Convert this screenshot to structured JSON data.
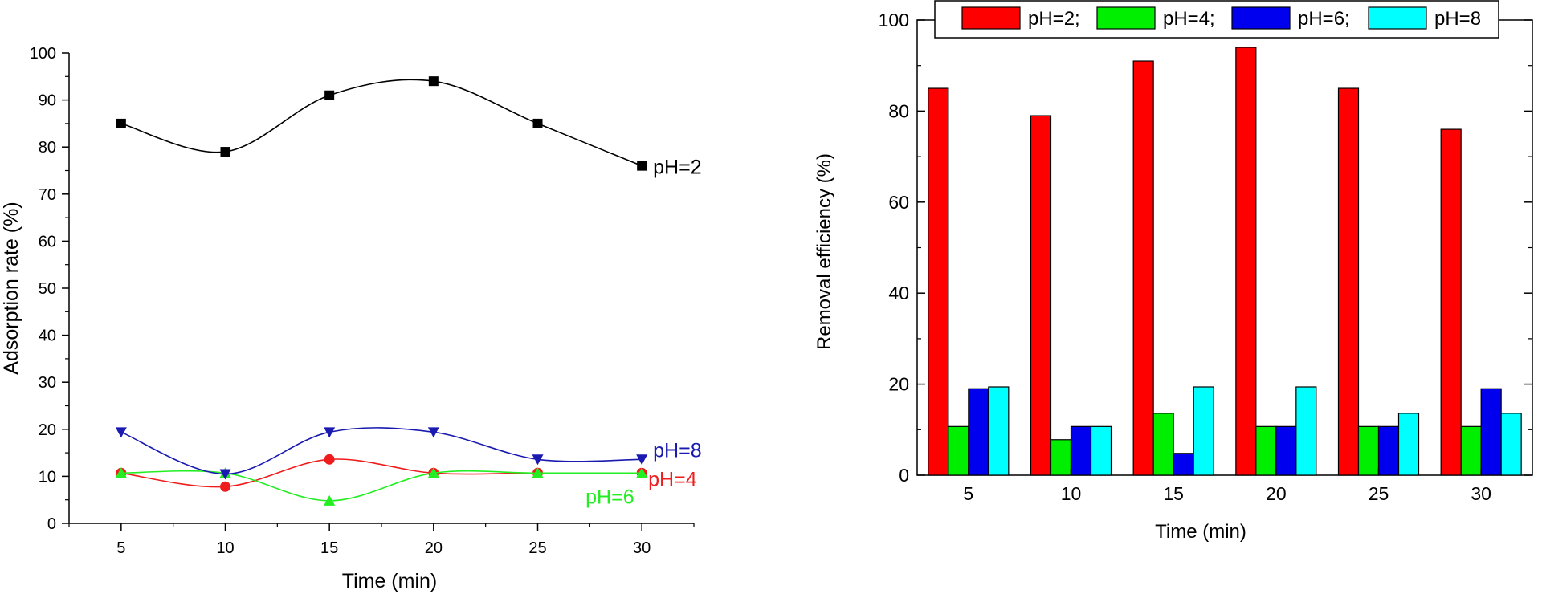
{
  "chart_data": [
    {
      "type": "line",
      "smooth": true,
      "xlabel": "Time (min)",
      "ylabel": "Adsorption rate (%)",
      "x": [
        5,
        10,
        15,
        20,
        25,
        30
      ],
      "xlim": [
        2.5,
        32.5
      ],
      "ylim": [
        0,
        100
      ],
      "xticks": [
        5,
        10,
        15,
        20,
        25,
        30
      ],
      "yticks": [
        0,
        10,
        20,
        30,
        40,
        50,
        60,
        70,
        80,
        90,
        100
      ],
      "series": [
        {
          "name": "pH=2",
          "label": "pH=2",
          "color": "#000000",
          "marker": "square",
          "values": [
            85,
            79,
            91,
            94,
            85,
            76
          ]
        },
        {
          "name": "pH=4",
          "label": "pH=4",
          "color": "#ee1c1c",
          "marker": "circle",
          "values": [
            10.7,
            7.8,
            13.6,
            10.7,
            10.7,
            10.7
          ]
        },
        {
          "name": "pH=6",
          "label": "pH=6",
          "color": "#22ee22",
          "marker": "triangle-up",
          "values": [
            10.7,
            10.7,
            4.8,
            10.7,
            10.7,
            10.7
          ]
        },
        {
          "name": "pH=8",
          "label": "pH=8",
          "color": "#1a1ab0",
          "marker": "triangle-down",
          "values": [
            19.4,
            10.5,
            19.4,
            19.4,
            13.6,
            13.6
          ]
        }
      ]
    },
    {
      "type": "bar",
      "xlabel": "Time (min)",
      "ylabel": "Removal efficiency (%)",
      "categories": [
        5,
        10,
        15,
        20,
        25,
        30
      ],
      "ylim": [
        0,
        100
      ],
      "yticks": [
        0,
        20,
        40,
        60,
        80,
        100
      ],
      "legend_position": "top",
      "series": [
        {
          "name": "pH=2;",
          "color": "#ff0000",
          "values": [
            85,
            79,
            91,
            94,
            85,
            76
          ]
        },
        {
          "name": "pH=4;",
          "color": "#00ee00",
          "values": [
            10.7,
            7.8,
            13.6,
            10.7,
            10.7,
            10.7
          ]
        },
        {
          "name": "pH=6;",
          "color": "#0000ee",
          "values": [
            19,
            10.7,
            4.8,
            10.7,
            10.7,
            19
          ]
        },
        {
          "name": "pH=8",
          "color": "#00ffff",
          "values": [
            19.4,
            10.7,
            19.4,
            19.4,
            13.6,
            13.6
          ]
        }
      ]
    }
  ]
}
